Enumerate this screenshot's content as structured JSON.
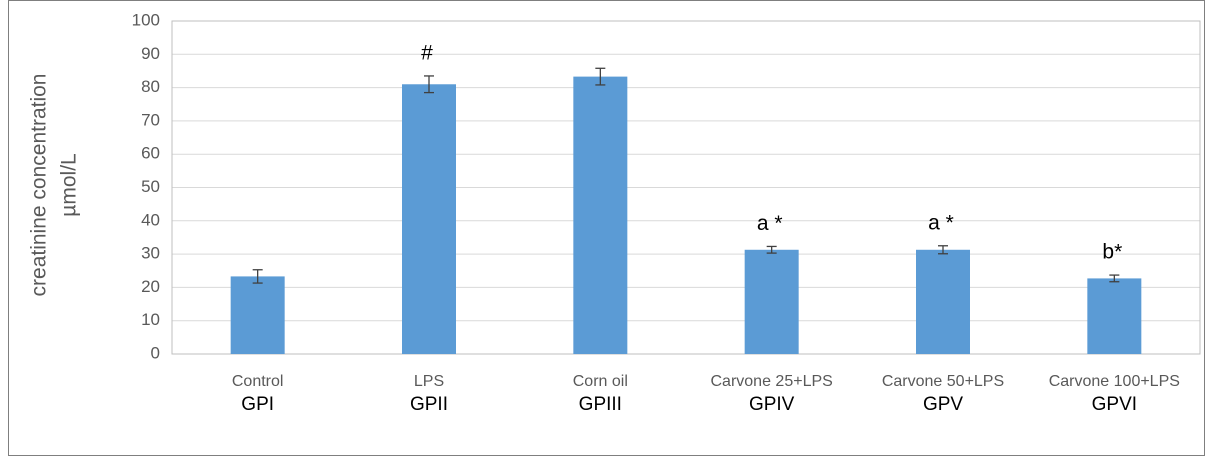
{
  "chart_data": {
    "type": "bar",
    "ylabel": [
      "creatinine concentration",
      "µmol/L"
    ],
    "categories": [
      "Control",
      "LPS",
      "Corn oil",
      "Carvone 25+LPS",
      "Carvone 50+LPS",
      "Carvone 100+LPS"
    ],
    "groups": [
      "GPI",
      "GPII",
      "GPIII",
      "GPIV",
      "GPV",
      "GPVI"
    ],
    "values": [
      23.3,
      81,
      83.3,
      31.3,
      31.3,
      22.7
    ],
    "errors": [
      2,
      2.5,
      2.5,
      1,
      1.2,
      1
    ],
    "annotations": [
      null,
      "#",
      null,
      "a *",
      "a *",
      "b*"
    ],
    "color": "#5b9bd5",
    "ylim": [
      0,
      100
    ],
    "yticks": [
      0,
      10,
      20,
      30,
      40,
      50,
      60,
      70,
      80,
      90,
      100
    ],
    "grid": true
  }
}
